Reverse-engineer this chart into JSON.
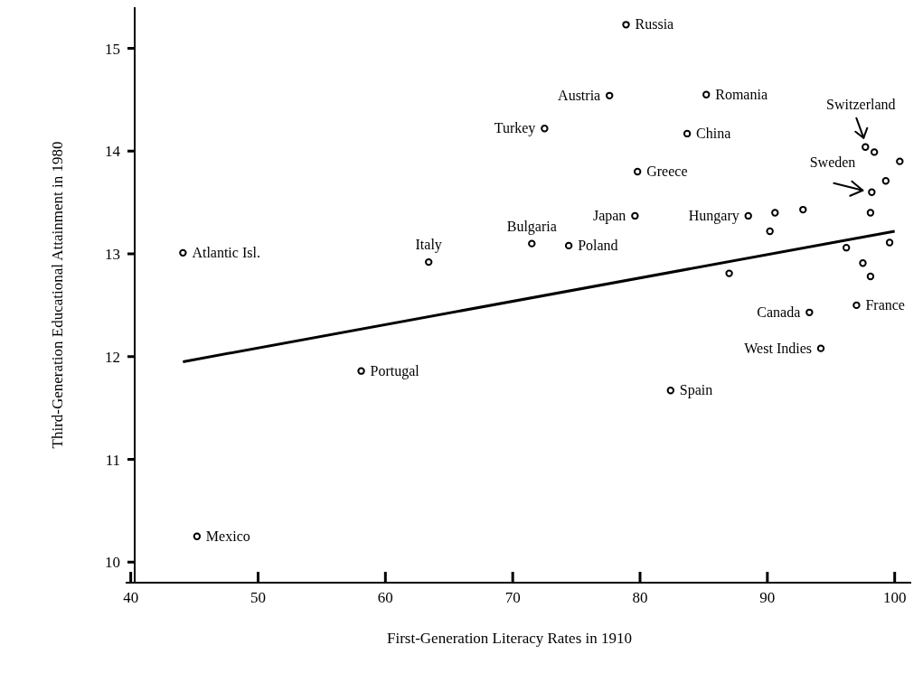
{
  "chart_data": {
    "type": "scatter",
    "xlabel": "First-Generation Literacy Rates in 1910",
    "ylabel": "Third-Generation Educational Attainment in 1980",
    "xlim": [
      39.6,
      101.3
    ],
    "ylim": [
      9.8,
      15.4
    ],
    "xticks": [
      40,
      50,
      60,
      70,
      80,
      90,
      100
    ],
    "yticks": [
      10,
      11,
      12,
      13,
      14,
      15
    ],
    "grid": false,
    "series": [
      {
        "color": "#000000",
        "marker": "circle",
        "x": [
          78.9,
          77.6,
          85.2,
          72.5,
          83.7,
          97.7,
          79.8,
          98.2,
          79.6,
          88.5,
          71.5,
          63.4,
          44.1,
          74.4,
          93.3,
          97.0,
          94.2,
          58.1,
          82.4,
          45.2,
          98.4,
          100.4,
          99.3,
          98.1,
          90.6,
          92.8,
          90.2,
          87.0,
          96.2,
          99.6,
          97.5,
          98.1
        ],
        "values": [
          15.23,
          14.54,
          14.55,
          14.22,
          14.17,
          14.04,
          13.8,
          13.6,
          13.37,
          13.37,
          13.1,
          12.92,
          13.01,
          13.08,
          12.43,
          12.5,
          12.08,
          11.86,
          11.67,
          10.25,
          13.99,
          13.9,
          13.71,
          13.4,
          13.4,
          13.43,
          13.22,
          12.81,
          13.06,
          13.11,
          12.91,
          12.78
        ]
      },
      {
        "type": "line",
        "color": "#000000",
        "marker": "none",
        "x": [
          44.1,
          100.0
        ],
        "values": [
          11.95,
          13.22
        ]
      }
    ],
    "annotations": [
      {
        "text": "Russia",
        "x": 78.9,
        "y": 15.23
      },
      {
        "text": "Austria",
        "x": 77.6,
        "y": 14.54
      },
      {
        "text": "Romania",
        "x": 85.2,
        "y": 14.55
      },
      {
        "text": "Turkey",
        "x": 72.5,
        "y": 14.22
      },
      {
        "text": "China",
        "x": 83.7,
        "y": 14.17
      },
      {
        "text": "Switzerland",
        "x": 97.7,
        "y": 14.04
      },
      {
        "text": "Greece",
        "x": 79.8,
        "y": 13.8
      },
      {
        "text": "Sweden",
        "x": 98.2,
        "y": 13.6
      },
      {
        "text": "Japan",
        "x": 79.6,
        "y": 13.37
      },
      {
        "text": "Hungary",
        "x": 88.5,
        "y": 13.37
      },
      {
        "text": "Bulgaria",
        "x": 71.5,
        "y": 13.1
      },
      {
        "text": "Italy",
        "x": 63.4,
        "y": 12.92
      },
      {
        "text": "Atlantic Isl.",
        "x": 44.1,
        "y": 13.01
      },
      {
        "text": "Poland",
        "x": 74.4,
        "y": 13.08
      },
      {
        "text": "Canada",
        "x": 93.3,
        "y": 12.43
      },
      {
        "text": "France",
        "x": 97.0,
        "y": 12.5
      },
      {
        "text": "West Indies",
        "x": 94.2,
        "y": 12.08
      },
      {
        "text": "Portugal",
        "x": 58.1,
        "y": 11.86
      },
      {
        "text": "Spain",
        "x": 82.4,
        "y": 11.67
      },
      {
        "text": "Mexico",
        "x": 45.2,
        "y": 10.25
      }
    ]
  }
}
